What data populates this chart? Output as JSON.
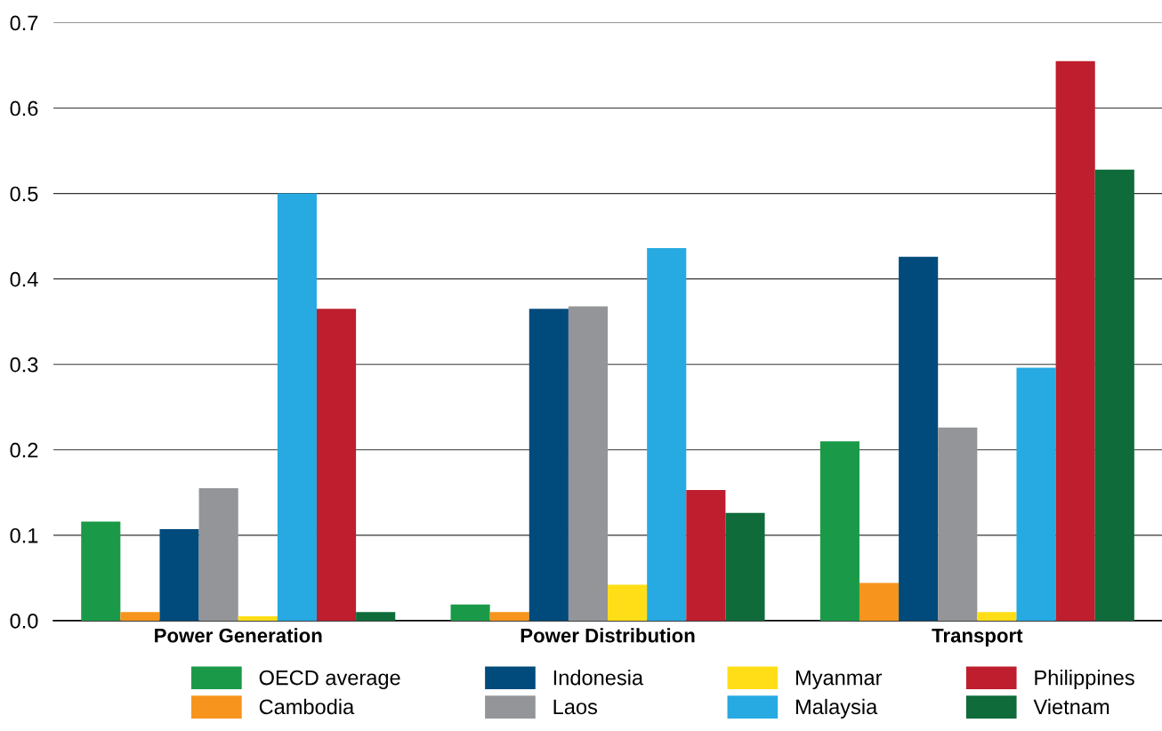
{
  "chart_data": {
    "type": "bar",
    "categories": [
      "Power Generation",
      "Power Distribution",
      "Transport"
    ],
    "series": [
      {
        "name": "OECD average",
        "color": "#1a9a48",
        "values": [
          0.116,
          0.019,
          0.21
        ]
      },
      {
        "name": "Cambodia",
        "color": "#f7941d",
        "values": [
          0.01,
          0.01,
          0.044
        ]
      },
      {
        "name": "Indonesia",
        "color": "#004a7c",
        "values": [
          0.107,
          0.365,
          0.426
        ]
      },
      {
        "name": "Laos",
        "color": "#939598",
        "values": [
          0.155,
          0.368,
          0.226
        ]
      },
      {
        "name": "Myanmar",
        "color": "#ffde17",
        "values": [
          0.005,
          0.042,
          0.01
        ]
      },
      {
        "name": "Malaysia",
        "color": "#27aae1",
        "values": [
          0.5,
          0.436,
          0.296
        ]
      },
      {
        "name": "Philippines",
        "color": "#be1e2d",
        "values": [
          0.365,
          0.153,
          0.655
        ]
      },
      {
        "name": "Vietnam",
        "color": "#0f6b3a",
        "values": [
          0.01,
          0.126,
          0.528
        ]
      }
    ],
    "ylim": [
      0,
      0.7
    ],
    "yticks": [
      {
        "value": 0,
        "label": "0.0"
      },
      {
        "value": 0.1,
        "label": "0.1"
      },
      {
        "value": 0.2,
        "label": "0.2"
      },
      {
        "value": 0.3,
        "label": "0.3"
      },
      {
        "value": 0.4,
        "label": "0.4"
      },
      {
        "value": 0.5,
        "label": "0.5"
      },
      {
        "value": 0.6,
        "label": "0.6"
      },
      {
        "value": 0.7,
        "label": "0.7"
      }
    ],
    "grid": "y",
    "legend": "bottom"
  }
}
